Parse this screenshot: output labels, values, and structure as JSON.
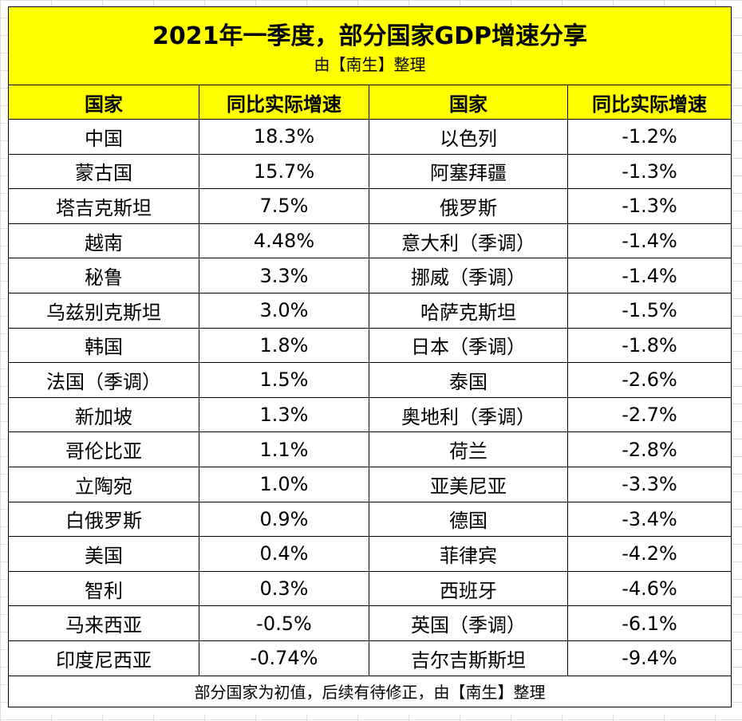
{
  "title": "2021年一季度，部分国家GDP增速分享",
  "subtitle": "由【南生】整理",
  "headers": [
    "国家",
    "同比实际增速",
    "国家",
    "同比实际增速"
  ],
  "rows": [
    {
      "c1": "中国",
      "v1": "18.3%",
      "c2": "以色列",
      "v2": "-1.2%"
    },
    {
      "c1": "蒙古国",
      "v1": "15.7%",
      "c2": "阿塞拜疆",
      "v2": "-1.3%"
    },
    {
      "c1": "塔吉克斯坦",
      "v1": "7.5%",
      "c2": "俄罗斯",
      "v2": "-1.3%"
    },
    {
      "c1": "越南",
      "v1": "4.48%",
      "c2": "意大利（季调）",
      "v2": "-1.4%"
    },
    {
      "c1": "秘鲁",
      "v1": "3.3%",
      "c2": "挪威（季调）",
      "v2": "-1.4%"
    },
    {
      "c1": "乌兹别克斯坦",
      "v1": "3.0%",
      "c2": "哈萨克斯坦",
      "v2": "-1.5%"
    },
    {
      "c1": "韩国",
      "v1": "1.8%",
      "c2": "日本（季调）",
      "v2": "-1.8%"
    },
    {
      "c1": "法国（季调）",
      "v1": "1.5%",
      "c2": "泰国",
      "v2": "-2.6%"
    },
    {
      "c1": "新加坡",
      "v1": "1.3%",
      "c2": "奥地利（季调）",
      "v2": "-2.7%"
    },
    {
      "c1": "哥伦比亚",
      "v1": "1.1%",
      "c2": "荷兰",
      "v2": "-2.8%"
    },
    {
      "c1": "立陶宛",
      "v1": "1.0%",
      "c2": "亚美尼亚",
      "v2": "-3.3%"
    },
    {
      "c1": "白俄罗斯",
      "v1": "0.9%",
      "c2": "德国",
      "v2": "-3.4%"
    },
    {
      "c1": "美国",
      "v1": "0.4%",
      "c2": "菲律宾",
      "v2": "-4.2%"
    },
    {
      "c1": "智利",
      "v1": "0.3%",
      "c2": "西班牙",
      "v2": "-4.6%"
    },
    {
      "c1": "马来西亚",
      "v1": "-0.5%",
      "c2": "英国（季调）",
      "v2": "-6.1%"
    },
    {
      "c1": "印度尼西亚",
      "v1": "-0.74%",
      "c2": "吉尔吉斯斯坦",
      "v2": "-9.4%"
    }
  ],
  "footer": "部分国家为初值，后续有待修正，由【南生】整理",
  "colors": {
    "header_bg": "#ffff00",
    "border": "#000000"
  }
}
